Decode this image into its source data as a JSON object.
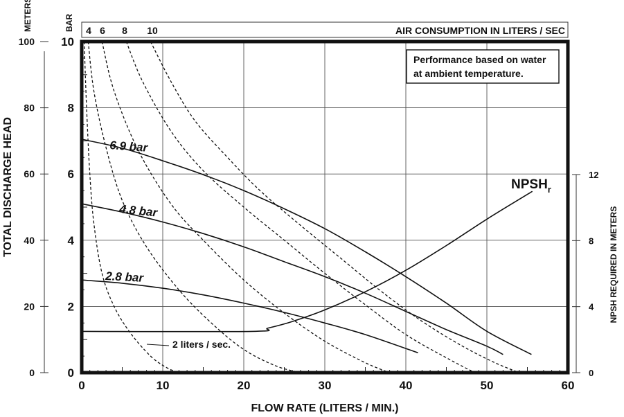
{
  "chart_data": {
    "type": "line",
    "title": "",
    "note": [
      "Performance based on water",
      "at ambient temperature."
    ],
    "xlabel": "FLOW RATE (LITERS / MIN.)",
    "xlim": [
      0,
      60
    ],
    "xticks": [
      "0",
      "10",
      "20",
      "30",
      "40",
      "50",
      "60"
    ],
    "y_bar": {
      "label": "BAR",
      "ylim": [
        0,
        10
      ],
      "ticks": [
        "0",
        "2",
        "4",
        "6",
        "8",
        "10"
      ]
    },
    "y_meters": {
      "label_unit": "METERS",
      "label": "TOTAL DISCHARGE HEAD",
      "ylim": [
        0,
        100
      ],
      "ticks": [
        "0",
        "20",
        "40",
        "60",
        "80",
        "100"
      ]
    },
    "y_npsh": {
      "label": "NPSH REQUIRED IN METERS",
      "ylim": [
        0,
        12
      ],
      "ticks": [
        "0",
        "4",
        "8",
        "12"
      ]
    },
    "top_axis": {
      "label": "AIR CONSUMPTION IN LITERS / SEC",
      "ticks": [
        "4",
        "6",
        "8",
        "10"
      ]
    },
    "grid": true,
    "series": [
      {
        "name": "6.9 bar",
        "style": "solid",
        "points": [
          [
            0,
            7.05
          ],
          [
            5,
            6.78
          ],
          [
            10,
            6.4
          ],
          [
            15,
            5.98
          ],
          [
            20,
            5.5
          ],
          [
            25,
            4.95
          ],
          [
            30,
            4.35
          ],
          [
            35,
            3.65
          ],
          [
            40,
            2.9
          ],
          [
            45,
            2.1
          ],
          [
            50,
            1.25
          ],
          [
            55.5,
            0.55
          ]
        ]
      },
      {
        "name": "4.8 bar",
        "style": "solid",
        "points": [
          [
            0,
            5.1
          ],
          [
            5,
            4.85
          ],
          [
            10,
            4.55
          ],
          [
            15,
            4.2
          ],
          [
            20,
            3.8
          ],
          [
            25,
            3.35
          ],
          [
            30,
            2.9
          ],
          [
            35,
            2.4
          ],
          [
            40,
            1.85
          ],
          [
            45,
            1.3
          ],
          [
            50,
            0.8
          ],
          [
            52,
            0.55
          ]
        ]
      },
      {
        "name": "2.8 bar",
        "style": "solid",
        "points": [
          [
            0,
            2.8
          ],
          [
            5,
            2.7
          ],
          [
            10,
            2.55
          ],
          [
            15,
            2.35
          ],
          [
            20,
            2.1
          ],
          [
            25,
            1.82
          ],
          [
            30,
            1.5
          ],
          [
            35,
            1.15
          ],
          [
            41.5,
            0.6
          ]
        ]
      },
      {
        "name": "NPSHr",
        "style": "solid",
        "axis": "npsh",
        "points": [
          [
            0,
            2.5
          ],
          [
            21,
            2.5
          ],
          [
            23,
            2.7
          ],
          [
            26,
            3.1
          ],
          [
            30,
            3.8
          ],
          [
            35,
            4.9
          ],
          [
            40,
            6.2
          ],
          [
            45,
            7.7
          ],
          [
            50,
            9.3
          ],
          [
            55,
            10.8
          ],
          [
            55.5,
            10.95
          ]
        ]
      },
      {
        "name": "2 liters / sec.",
        "style": "dashed",
        "points": [
          [
            0.3,
            10
          ],
          [
            0.6,
            8
          ],
          [
            1,
            6
          ],
          [
            1.5,
            4.5
          ],
          [
            2.5,
            3
          ],
          [
            4,
            2
          ],
          [
            6,
            1.2
          ],
          [
            8.5,
            0.5
          ],
          [
            10.5,
            0.15
          ],
          [
            12,
            0
          ]
        ]
      },
      {
        "name": "4",
        "style": "dashed",
        "points": [
          [
            0.8,
            10
          ],
          [
            1.5,
            8.5
          ],
          [
            3,
            6.8
          ],
          [
            5,
            5.2
          ],
          [
            8,
            3.8
          ],
          [
            12,
            2.5
          ],
          [
            16,
            1.5
          ],
          [
            20,
            0.7
          ],
          [
            24,
            0.2
          ],
          [
            27,
            0
          ]
        ]
      },
      {
        "name": "6",
        "style": "dashed",
        "points": [
          [
            2.5,
            10
          ],
          [
            4,
            8.5
          ],
          [
            7,
            6.7
          ],
          [
            11,
            5.1
          ],
          [
            15,
            4
          ],
          [
            20,
            2.8
          ],
          [
            25,
            1.8
          ],
          [
            30,
            0.95
          ],
          [
            35,
            0.3
          ],
          [
            38,
            0
          ]
        ]
      },
      {
        "name": "8",
        "style": "dashed",
        "points": [
          [
            5.5,
            10
          ],
          [
            7.5,
            8.8
          ],
          [
            11,
            7.3
          ],
          [
            15,
            6.1
          ],
          [
            20,
            5
          ],
          [
            25,
            4
          ],
          [
            30,
            3
          ],
          [
            35,
            2.05
          ],
          [
            40,
            1.15
          ],
          [
            45,
            0.45
          ],
          [
            48.5,
            0
          ]
        ]
      },
      {
        "name": "10",
        "style": "dashed",
        "points": [
          [
            8.5,
            10
          ],
          [
            11,
            8.8
          ],
          [
            14,
            7.6
          ],
          [
            18,
            6.5
          ],
          [
            22,
            5.5
          ],
          [
            27,
            4.45
          ],
          [
            32,
            3.45
          ],
          [
            37,
            2.45
          ],
          [
            42,
            1.55
          ],
          [
            47,
            0.8
          ],
          [
            51,
            0.3
          ],
          [
            54,
            0
          ]
        ]
      }
    ],
    "labels": {
      "s69": "6.9 bar",
      "s48": "4.8 bar",
      "s28": "2.8 bar",
      "npsh_main": "NPSH",
      "npsh_sub": "r",
      "air2": "2 liters / sec."
    }
  }
}
